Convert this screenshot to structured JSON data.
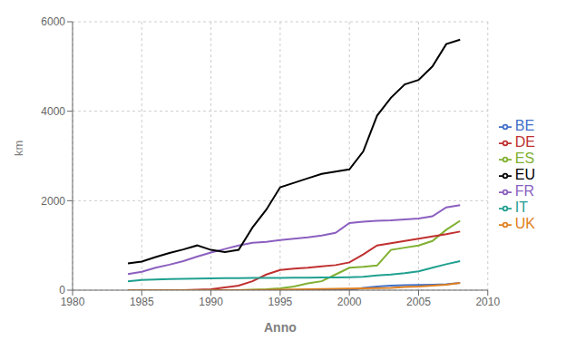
{
  "chart_data": {
    "type": "line",
    "xlabel": "Anno",
    "ylabel": "km",
    "xlim": [
      1980,
      2010
    ],
    "ylim": [
      0,
      6000
    ],
    "xticks": [
      1980,
      1985,
      1990,
      1995,
      2000,
      2005,
      2010
    ],
    "yticks": [
      0,
      2000,
      4000,
      6000
    ],
    "grid": true,
    "legend": "right",
    "series": [
      {
        "name": "FR",
        "color": "#8B5FBF",
        "x": [
          1984,
          1985,
          1986,
          1987,
          1988,
          1989,
          1990,
          1991,
          1992,
          1993,
          1994,
          1995,
          1996,
          1997,
          1998,
          1999,
          2000,
          2001,
          2002,
          2003,
          2004,
          2005,
          2006,
          2007,
          2008
        ],
        "values": [
          360,
          410,
          500,
          570,
          650,
          750,
          840,
          920,
          1000,
          1060,
          1080,
          1120,
          1150,
          1180,
          1220,
          1280,
          1500,
          1530,
          1550,
          1560,
          1580,
          1600,
          1650,
          1850,
          1900
        ]
      },
      {
        "name": "ES",
        "color": "#80b030",
        "x": [
          1992,
          1993,
          1994,
          1995,
          1996,
          1997,
          1998,
          1999,
          2000,
          2001,
          2002,
          2003,
          2004,
          2005,
          2006,
          2007,
          2008
        ],
        "values": [
          0,
          10,
          20,
          40,
          80,
          150,
          200,
          350,
          500,
          520,
          550,
          900,
          950,
          1000,
          1100,
          1350,
          1550
        ]
      },
      {
        "name": "DE",
        "color": "#c03030",
        "x": [
          1988,
          1989,
          1990,
          1991,
          1992,
          1993,
          1994,
          1995,
          1996,
          1997,
          1998,
          1999,
          2000,
          2001,
          2002,
          2003,
          2004,
          2005,
          2006,
          2007,
          2008
        ],
        "values": [
          0,
          10,
          20,
          60,
          100,
          200,
          350,
          450,
          480,
          500,
          530,
          560,
          620,
          800,
          1000,
          1050,
          1100,
          1150,
          1200,
          1250,
          1310
        ]
      },
      {
        "name": "IT",
        "color": "#20a090",
        "x": [
          1984,
          1985,
          1986,
          1987,
          1988,
          1989,
          1990,
          1991,
          1992,
          1993,
          1994,
          1995,
          1996,
          1997,
          1998,
          1999,
          2000,
          2001,
          2002,
          2003,
          2004,
          2005,
          2006,
          2007,
          2008
        ],
        "values": [
          200,
          230,
          240,
          250,
          255,
          260,
          265,
          268,
          270,
          272,
          274,
          276,
          278,
          280,
          282,
          285,
          290,
          300,
          330,
          350,
          380,
          420,
          500,
          580,
          650
        ]
      },
      {
        "name": "BE",
        "color": "#4070c8",
        "x": [
          1997,
          1998,
          1999,
          2000,
          2001,
          2002,
          2003,
          2004,
          2005,
          2006,
          2007,
          2008
        ],
        "values": [
          0,
          0,
          0,
          0,
          50,
          80,
          100,
          110,
          115,
          120,
          130,
          160
        ]
      },
      {
        "name": "UK",
        "color": "#e08020",
        "x": [
          1984,
          1985,
          1990,
          1994,
          1995,
          1996,
          1997,
          1998,
          1999,
          2000,
          2001,
          2002,
          2003,
          2004,
          2005,
          2006,
          2007,
          2008
        ],
        "values": [
          0,
          0,
          0,
          5,
          10,
          15,
          20,
          25,
          30,
          35,
          40,
          45,
          50,
          70,
          80,
          100,
          120,
          160
        ]
      },
      {
        "name": "EU",
        "color": "#000000",
        "x": [
          1984,
          1985,
          1986,
          1987,
          1988,
          1989,
          1990,
          1991,
          1992,
          1993,
          1994,
          1995,
          1996,
          1997,
          1998,
          1999,
          2000,
          2001,
          2002,
          2003,
          2004,
          2005,
          2006,
          2007,
          2008
        ],
        "values": [
          600,
          640,
          740,
          830,
          910,
          1000,
          900,
          850,
          900,
          1400,
          1800,
          2300,
          2400,
          2500,
          2600,
          2650,
          2700,
          3100,
          3900,
          4300,
          4600,
          4700,
          5000,
          5500,
          5600
        ]
      }
    ]
  }
}
